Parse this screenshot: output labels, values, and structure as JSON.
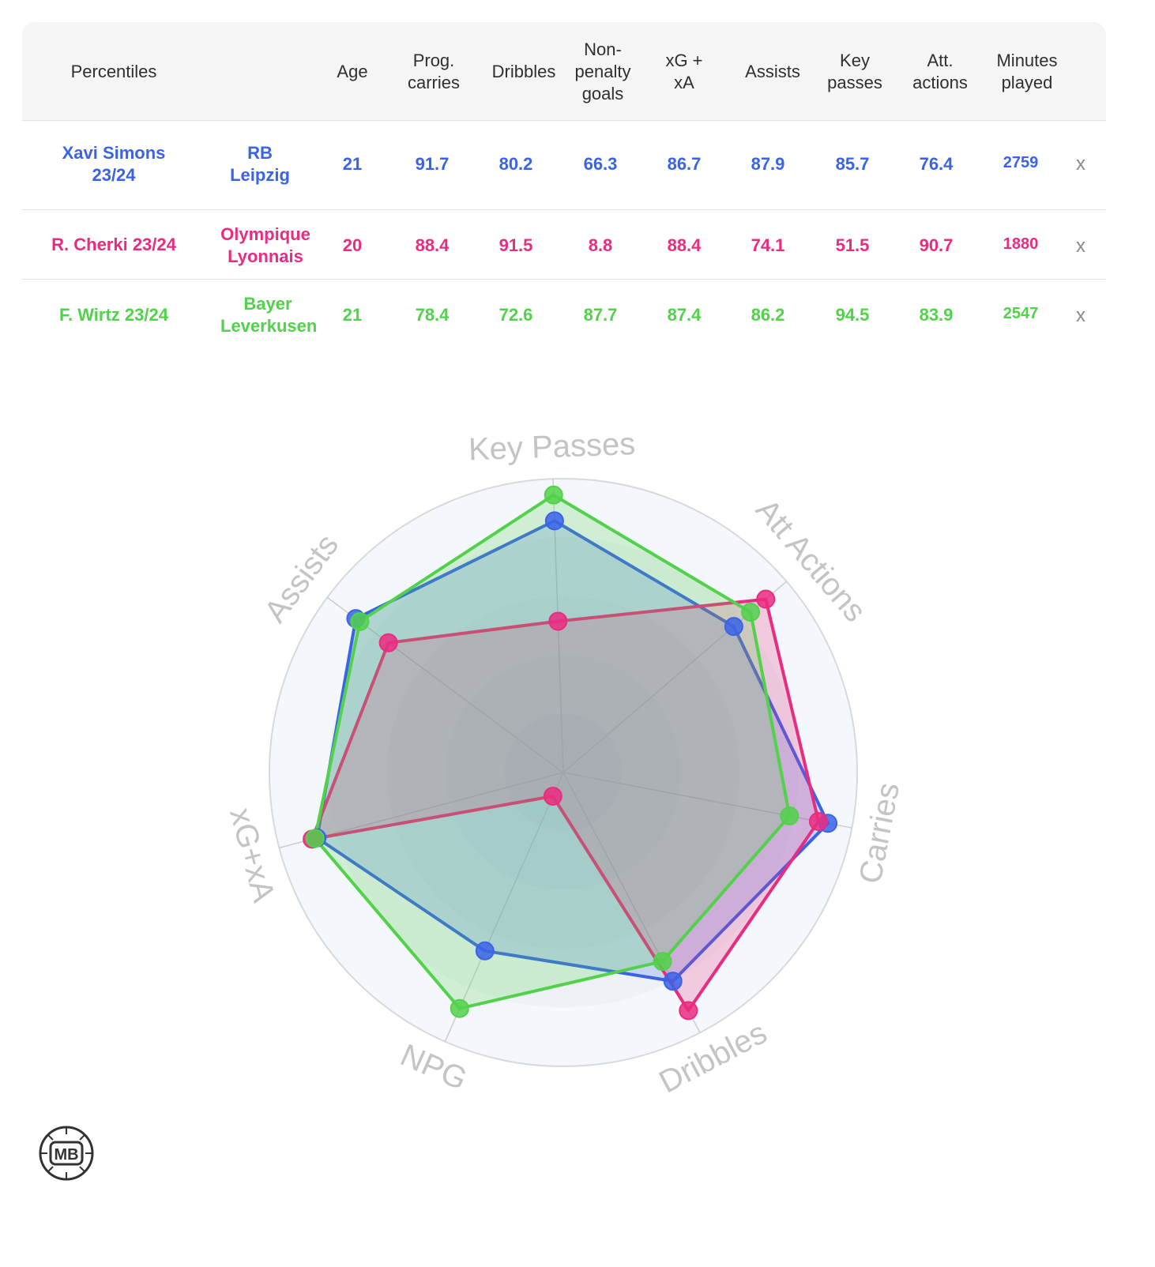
{
  "table": {
    "headers": {
      "percentiles": "Percentiles",
      "age": "Age",
      "prog_carries": "Prog.\ncarries",
      "dribbles": "Dribbles",
      "npg": "Non-\npenalty\ngoals",
      "xgxa": "xG +\nxA",
      "assists": "Assists",
      "key_passes": "Key\npasses",
      "att_actions": "Att.\nactions",
      "minutes": "Minutes\nplayed"
    },
    "rows": [
      {
        "player": "Xavi Simons\n23/24",
        "team": "RB\nLeipzig",
        "age": "21",
        "prog_carries": "91.7",
        "dribbles": "80.2",
        "npg": "66.3",
        "xgxa": "86.7",
        "assists": "87.9",
        "key_passes": "85.7",
        "att_actions": "76.4",
        "minutes": "2759",
        "remove": "x",
        "color": "#3a63e8"
      },
      {
        "player": "R. Cherki 23/24",
        "team": "Olympique\nLyonnais",
        "age": "20",
        "prog_carries": "88.4",
        "dribbles": "91.5",
        "npg": "8.8",
        "xgxa": "88.4",
        "assists": "74.1",
        "key_passes": "51.5",
        "att_actions": "90.7",
        "minutes": "1880",
        "remove": "x",
        "color": "#ea2c80"
      },
      {
        "player": "F. Wirtz 23/24",
        "team": "Bayer\nLeverkusen",
        "age": "21",
        "prog_carries": "78.4",
        "dribbles": "72.6",
        "npg": "87.7",
        "xgxa": "87.4",
        "assists": "86.2",
        "key_passes": "94.5",
        "att_actions": "83.9",
        "minutes": "2547",
        "remove": "x",
        "color": "#52d14a"
      }
    ]
  },
  "chart_data": {
    "type": "radar",
    "axes": [
      "Key Passes",
      "Att Actions",
      "Carries",
      "Dribbles",
      "NPG",
      "xG+xA",
      "Assists"
    ],
    "range": [
      0,
      100
    ],
    "series": [
      {
        "name": "Xavi Simons 23/24",
        "color": "#3a63e8",
        "values": [
          85.7,
          76.4,
          91.7,
          80.2,
          66.3,
          86.7,
          87.9
        ]
      },
      {
        "name": "R. Cherki 23/24",
        "color": "#ea2c80",
        "values": [
          51.5,
          90.7,
          88.4,
          91.5,
          8.8,
          88.4,
          74.1
        ]
      },
      {
        "name": "F. Wirtz 23/24",
        "color": "#52d14a",
        "values": [
          94.5,
          83.9,
          78.4,
          72.6,
          87.7,
          87.4,
          86.2
        ]
      }
    ]
  },
  "logo": {
    "text": "MB",
    "icon": "football-logo"
  }
}
